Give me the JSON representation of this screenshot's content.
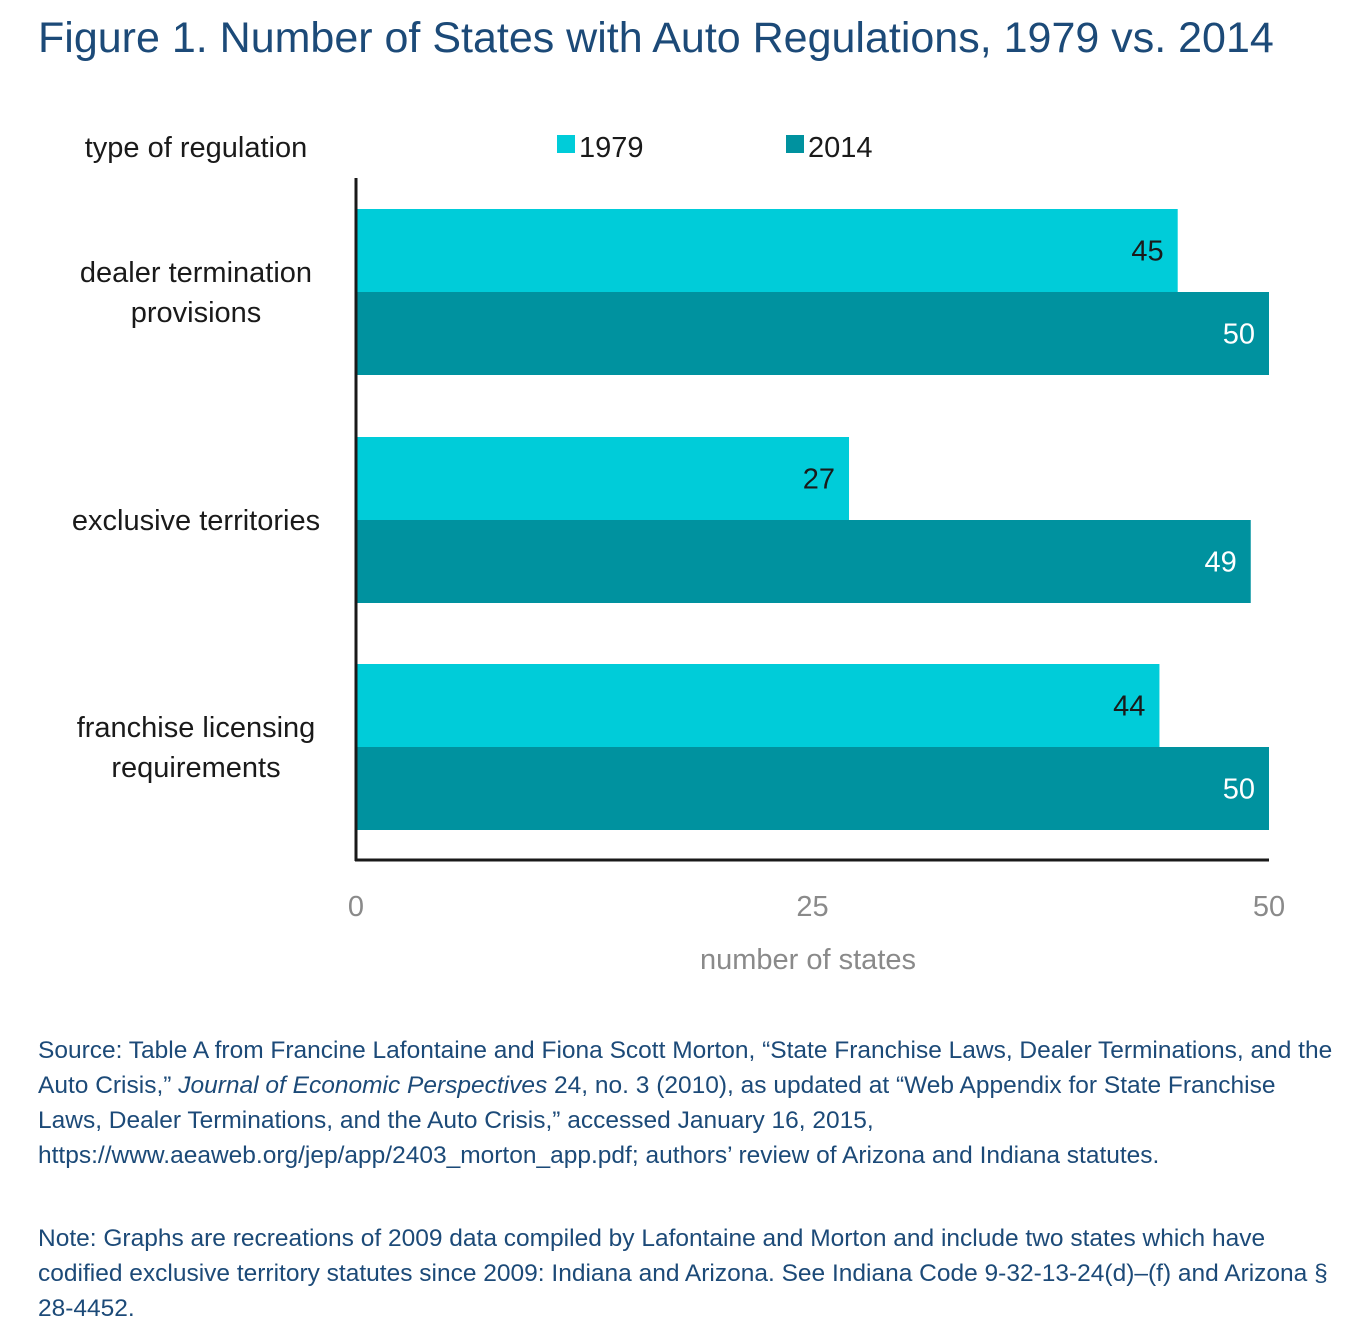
{
  "title": "Figure 1. Number of States with Auto Regulations, 1979 vs. 2014",
  "chart_data": {
    "type": "bar",
    "orientation": "horizontal",
    "category_axis_label": "type of regulation",
    "categories": [
      [
        "dealer termination",
        "provisions"
      ],
      [
        "exclusive territories"
      ],
      [
        "franchise licensing",
        "requirements"
      ]
    ],
    "series": [
      {
        "name": "1979",
        "color": "#00ccd9",
        "values": [
          45,
          27,
          44
        ]
      },
      {
        "name": "2014",
        "color": "#00929f",
        "values": [
          50,
          49,
          50
        ]
      }
    ],
    "xlabel": "number of states",
    "xlim": [
      0,
      50
    ],
    "xticks": [
      0,
      25,
      50
    ],
    "legend": "top-center",
    "grid": false,
    "data_labels": true
  },
  "source": {
    "before_italic": "Source: Table A from Francine Lafontaine and Fiona Scott Morton, “State Franchise Laws, Dealer Terminations, and the Auto Crisis,” ",
    "italic": "Journal of Economic Perspectives",
    "after_italic": " 24, no. 3 (2010), as updated at “Web Appendix for State Franchise Laws, Dealer Terminations, and the Auto Crisis,” accessed January 16, 2015, https://www.aeaweb.org/jep/app/2403_morton_app.pdf; authors’ review of Arizona and Indiana statutes."
  },
  "note": "Note: Graphs are recreations of 2009 data compiled by Lafontaine and Morton and include two states which have codified exclusive territory statutes since 2009: Indiana and Arizona. See Indiana Code 9-32-13-24(d)–(f) and Arizona § 28-4452."
}
